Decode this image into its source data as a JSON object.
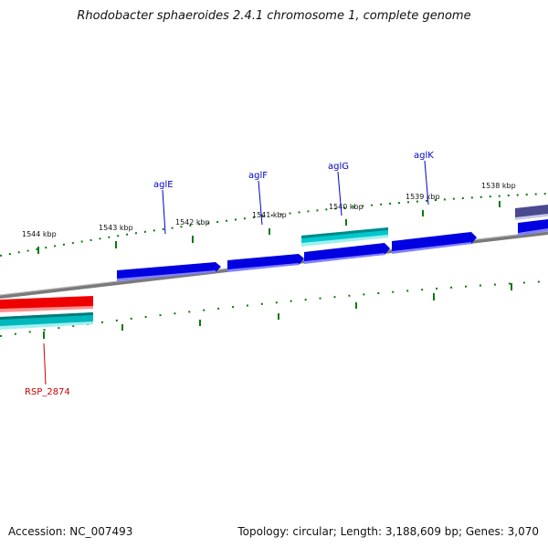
{
  "title": "Rhodobacter sphaeroides 2.4.1 chromosome 1, complete genome",
  "footer": {
    "accession": "Accession: NC_007493",
    "topology": "Topology: circular; Length: 3,188,609 bp; Genes: 3,070"
  },
  "scale_labels": [
    "1544 kbp",
    "1543 kbp",
    "1542 kbp",
    "1541 kbp",
    "1540 kbp",
    "1539 kbp",
    "1538 kbp"
  ],
  "gene_labels": [
    "aglE",
    "aglF",
    "aglG",
    "aglK",
    "RSP_2874"
  ],
  "colors": {
    "forward_gene": "#0000e0",
    "forward_alt_gene": "#00c8cc",
    "reverse_gene": "#ee0000",
    "reverse_alt_gene": "#00b8bc",
    "other_gene": "#4a4a90",
    "tick": "#0a7a0a",
    "backbone": "#888888",
    "forward_label": "#0000cc",
    "reverse_label": "#cc0000"
  }
}
